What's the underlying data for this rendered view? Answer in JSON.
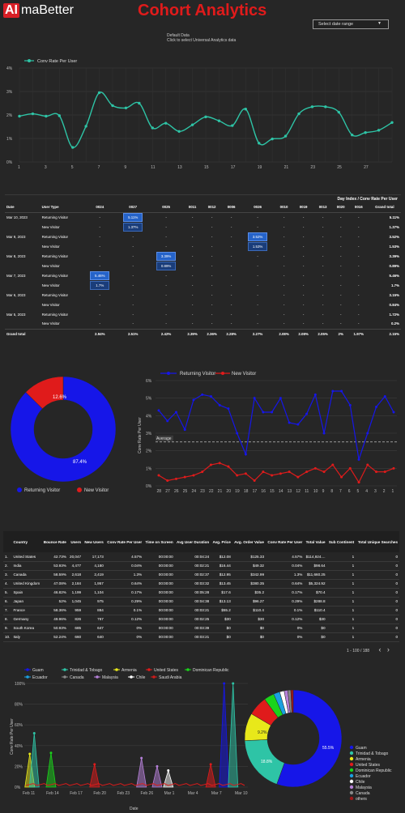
{
  "header": {
    "logo_ai": "AI",
    "logo_rest": "maBetter",
    "title": "Cohort Analytics",
    "date_range_label": "Select date range",
    "ga_source_line1": "Default Data",
    "ga_source_line2": "Click to select Universal Analytics data"
  },
  "colors": {
    "title": "#e01b1b",
    "teal": "#2ec4a6",
    "blue": "#1616e8",
    "red": "#e01b1b"
  },
  "chart1": {
    "legend": "Conv Rate Per User",
    "y_ticks": [
      "4%",
      "3%",
      "2%",
      "1%",
      "0%"
    ],
    "x_ticks": [
      "1",
      "3",
      "5",
      "7",
      "9",
      "11",
      "13",
      "15",
      "17",
      "19",
      "21",
      "23",
      "25",
      "27"
    ]
  },
  "cohort_table": {
    "title": "Day Index / Conv Rate Per User",
    "headers": [
      "Date",
      "User Type",
      "0024",
      "0027",
      "0025",
      "0011",
      "0012",
      "0006",
      "0026",
      "0010",
      "0019",
      "0013",
      "0020",
      "0016",
      "Grand total"
    ],
    "rows": [
      [
        "Mar 10, 2023",
        "Returning Visitor",
        "-",
        "5.11%",
        "-",
        "-",
        "-",
        "-",
        "-",
        "-",
        "-",
        "-",
        "-",
        "-",
        "5.11%"
      ],
      [
        "",
        "New Visitor",
        "-",
        "1.37%",
        "-",
        "-",
        "-",
        "-",
        "-",
        "-",
        "-",
        "-",
        "-",
        "-",
        "1.37%"
      ],
      [
        "Mar 9, 2023",
        "Returning Visitor",
        "-",
        "-",
        "-",
        "-",
        "-",
        "-",
        "3.52%",
        "-",
        "-",
        "-",
        "-",
        "-",
        "3.52%"
      ],
      [
        "",
        "New Visitor",
        "-",
        "-",
        "-",
        "-",
        "-",
        "-",
        "1.53%",
        "-",
        "-",
        "-",
        "-",
        "-",
        "1.53%"
      ],
      [
        "Mar 8, 2023",
        "Returning Visitor",
        "-",
        "-",
        "3.39%",
        "-",
        "-",
        "-",
        "-",
        "-",
        "-",
        "-",
        "-",
        "-",
        "3.39%"
      ],
      [
        "",
        "New Visitor",
        "-",
        "-",
        "0.89%",
        "-",
        "-",
        "-",
        "-",
        "-",
        "-",
        "-",
        "-",
        "-",
        "0.89%"
      ],
      [
        "Mar 7, 2023",
        "Returning Visitor",
        "5.46%",
        "-",
        "-",
        "-",
        "-",
        "-",
        "-",
        "-",
        "-",
        "-",
        "-",
        "-",
        "5.46%"
      ],
      [
        "",
        "New Visitor",
        "1.7%",
        "-",
        "-",
        "-",
        "-",
        "-",
        "-",
        "-",
        "-",
        "-",
        "-",
        "-",
        "1.7%"
      ],
      [
        "Mar 6, 2023",
        "Returning Visitor",
        "-",
        "-",
        "-",
        "-",
        "-",
        "-",
        "-",
        "-",
        "-",
        "-",
        "-",
        "-",
        "3.15%"
      ],
      [
        "",
        "New Visitor",
        "-",
        "-",
        "-",
        "-",
        "-",
        "-",
        "-",
        "-",
        "-",
        "-",
        "-",
        "-",
        "0.84%"
      ],
      [
        "Mar 5, 2023",
        "Returning Visitor",
        "-",
        "-",
        "-",
        "-",
        "-",
        "-",
        "-",
        "-",
        "-",
        "-",
        "-",
        "-",
        "1.72%"
      ],
      [
        "",
        "New Visitor",
        "-",
        "-",
        "-",
        "-",
        "-",
        "-",
        "-",
        "-",
        "-",
        "-",
        "-",
        "-",
        "0.2%"
      ]
    ],
    "grand_total": [
      "Grand total",
      "",
      "2.94%",
      "2.51%",
      "2.42%",
      "2.39%",
      "2.36%",
      "2.28%",
      "2.27%",
      "2.08%",
      "2.08%",
      "2.05%",
      "2%",
      "1.97%",
      "2.15%"
    ]
  },
  "pie1": {
    "legend": [
      "Returning Visitor",
      "New Visitor"
    ],
    "labels": [
      "87.4%",
      "12.6%"
    ]
  },
  "chart2": {
    "legend": [
      "Returning Visitor",
      "New Visitor"
    ],
    "y_axis_label": "Conv Rate Per User",
    "y_ticks": [
      "6%",
      "5%",
      "4%",
      "3%",
      "2%",
      "1%",
      "0%"
    ],
    "x_ticks": [
      "28",
      "27",
      "26",
      "25",
      "24",
      "23",
      "22",
      "21",
      "20",
      "19",
      "18",
      "17",
      "16",
      "15",
      "14",
      "13",
      "12",
      "11",
      "10",
      "9",
      "8",
      "7",
      "6",
      "5",
      "4",
      "3",
      "2",
      "1"
    ],
    "average_label": "Average"
  },
  "country_table": {
    "headers": [
      "Country",
      "Bounce Rate",
      "Users",
      "New Users",
      "Conv Rate Per User",
      "Time on Screen",
      "Avg User Duration",
      "Avg. Price",
      "Avg. Order Value",
      "Conv Rate Per User",
      "Total Value",
      "Sub Continent",
      "Total Unique Searches"
    ],
    "rows": [
      [
        "1.",
        "United States",
        "42.73%",
        "20,047",
        "17,173",
        "4.57%",
        "00:00:00",
        "00:04:24",
        "$12.08",
        "$125.33",
        "4.57%",
        "$114,924....",
        "1",
        "0"
      ],
      [
        "2.",
        "India",
        "53.93%",
        "4,477",
        "4,180",
        "0.04%",
        "00:00:00",
        "00:02:21",
        "$16.44",
        "$49.32",
        "0.04%",
        "$98.64",
        "1",
        "0"
      ],
      [
        "3.",
        "Canada",
        "58.59%",
        "2,618",
        "2,419",
        "1.3%",
        "00:00:00",
        "00:02:37",
        "$12.95",
        "$342.99",
        "1.3%",
        "$11,660.25",
        "1",
        "0"
      ],
      [
        "4.",
        "United Kingdom",
        "47.08%",
        "2,184",
        "1,957",
        "0.64%",
        "00:00:00",
        "00:03:32",
        "$13.45",
        "$380.35",
        "0.64%",
        "$5,324.92",
        "1",
        "0"
      ],
      [
        "5.",
        "Spain",
        "46.82%",
        "1,199",
        "1,104",
        "0.17%",
        "00:00:00",
        "00:05:28",
        "$17.6",
        "$35.2",
        "0.17%",
        "$70.4",
        "1",
        "0"
      ],
      [
        "6.",
        "Japan",
        "52%",
        "1,045",
        "975",
        "0.29%",
        "00:00:00",
        "00:04:38",
        "$13.13",
        "$96.27",
        "0.29%",
        "$288.8",
        "1",
        "0"
      ],
      [
        "7.",
        "France",
        "58.36%",
        "959",
        "884",
        "0.1%",
        "00:00:00",
        "00:03:21",
        "$55.2",
        "$110.4",
        "0.1%",
        "$110.4",
        "1",
        "0"
      ],
      [
        "8.",
        "Germany",
        "49.96%",
        "826",
        "767",
        "0.12%",
        "00:00:00",
        "00:02:25",
        "$30",
        "$30",
        "0.12%",
        "$30",
        "1",
        "0"
      ],
      [
        "9.",
        "South Korea",
        "50.93%",
        "685",
        "647",
        "0%",
        "00:00:00",
        "00:03:39",
        "$0",
        "$0",
        "0%",
        "$0",
        "1",
        "0"
      ],
      [
        "10.",
        "Italy",
        "52.24%",
        "660",
        "640",
        "0%",
        "00:00:00",
        "00:03:21",
        "$0",
        "$0",
        "0%",
        "$0",
        "1",
        "0"
      ]
    ],
    "pager": "1 - 100 / 188"
  },
  "chart3": {
    "legend": [
      "Guam",
      "Trinidad & Tobago",
      "Armenia",
      "United States",
      "Dominican Republic",
      "Ecuador",
      "Canada",
      "Malaysia",
      "Chile",
      "Saudi Arabia"
    ],
    "legend_colors": [
      "#1616e8",
      "#2ec4a6",
      "#e8e81a",
      "#e01b1b",
      "#1ad41a",
      "#1aa0e0",
      "#888888",
      "#b580d8",
      "#ffffff",
      "#d01b1b"
    ],
    "y_axis_label": "Conv Rate Per User",
    "x_axis_label": "Date",
    "y_ticks": [
      "100%",
      "80%",
      "60%",
      "40%",
      "20%",
      "0%"
    ],
    "x_ticks": [
      "Feb 11",
      "Feb 14",
      "Feb 17",
      "Feb 20",
      "Feb 23",
      "Feb 26",
      "Mar 1",
      "Mar 4",
      "Mar 7",
      "Mar 10"
    ]
  },
  "pie2": {
    "legend": [
      "Guam",
      "Trinidad & Tobago",
      "Armenia",
      "United States",
      "Dominican Republic",
      "Ecuador",
      "Chile",
      "Malaysia",
      "Canada",
      "others"
    ],
    "legend_colors": [
      "#1616e8",
      "#2ec4a6",
      "#e8e81a",
      "#e01b1b",
      "#1ad41a",
      "#1aa0e0",
      "#ffffff",
      "#b580d8",
      "#888888",
      "#a01818"
    ],
    "labels": [
      "55.5%",
      "18.8%",
      "9.2%"
    ],
    "values": [
      55.5,
      18.8,
      9.2,
      6.5,
      3.4,
      2.1,
      1.5,
      1.2,
      1.0,
      0.8
    ]
  },
  "chart_data": [
    {
      "type": "line",
      "title": "",
      "series": [
        {
          "name": "Conv Rate Per User",
          "values": [
            1.95,
            2.05,
            1.95,
            1.97,
            0.62,
            1.52,
            2.95,
            2.4,
            2.3,
            2.5,
            1.45,
            1.65,
            1.3,
            1.58,
            1.92,
            1.75,
            1.55,
            2.25,
            0.8,
            0.98,
            1.1,
            2.05,
            2.35,
            2.35,
            2.12,
            1.15,
            1.25,
            1.35,
            1.68
          ]
        }
      ],
      "x": [
        1,
        2,
        3,
        4,
        5,
        6,
        7,
        8,
        9,
        10,
        11,
        12,
        13,
        14,
        15,
        16,
        17,
        18,
        19,
        20,
        21,
        22,
        23,
        24,
        25,
        26,
        27,
        28,
        29
      ],
      "ylim": [
        0,
        4
      ]
    },
    {
      "type": "pie",
      "categories": [
        "Returning Visitor",
        "New Visitor"
      ],
      "values": [
        87.4,
        12.6
      ]
    },
    {
      "type": "line",
      "categories": [
        "28",
        "27",
        "26",
        "25",
        "24",
        "23",
        "22",
        "21",
        "20",
        "19",
        "18",
        "17",
        "16",
        "15",
        "14",
        "13",
        "12",
        "11",
        "10",
        "9",
        "8",
        "7",
        "6",
        "5",
        "4",
        "3",
        "2",
        "1"
      ],
      "series": [
        {
          "name": "Returning Visitor",
          "values": [
            4.3,
            3.7,
            4.2,
            3.2,
            4.9,
            5.2,
            5.1,
            4.6,
            4.4,
            3.0,
            1.8,
            5.0,
            4.2,
            4.2,
            5.0,
            3.6,
            3.5,
            4.1,
            5.2,
            3.0,
            5.4,
            5.4,
            4.6,
            1.5,
            3.0,
            4.5,
            5.1,
            4.2
          ]
        },
        {
          "name": "New Visitor",
          "values": [
            0.6,
            0.3,
            0.4,
            0.5,
            0.6,
            0.8,
            1.2,
            1.3,
            1.1,
            0.6,
            0.7,
            0.3,
            0.8,
            0.6,
            0.7,
            0.8,
            0.5,
            0.8,
            1.0,
            0.8,
            1.2,
            0.5,
            1.0,
            0.2,
            1.2,
            0.8,
            0.8,
            1.0
          ]
        }
      ],
      "ylim": [
        0,
        6
      ],
      "average": 2.5
    },
    {
      "type": "area",
      "categories": [
        "Feb 11",
        "Feb 14",
        "Feb 17",
        "Feb 20",
        "Feb 23",
        "Feb 26",
        "Mar 1",
        "Mar 4",
        "Mar 7",
        "Mar 10"
      ],
      "ylim": [
        0,
        100
      ]
    },
    {
      "type": "pie",
      "categories": [
        "Guam",
        "Trinidad & Tobago",
        "Armenia",
        "United States",
        "Dominican Republic",
        "Ecuador",
        "Chile",
        "Malaysia",
        "Canada",
        "others"
      ],
      "values": [
        55.5,
        18.8,
        9.2,
        6.5,
        3.4,
        2.1,
        1.5,
        1.2,
        1.0,
        0.8
      ]
    }
  ]
}
